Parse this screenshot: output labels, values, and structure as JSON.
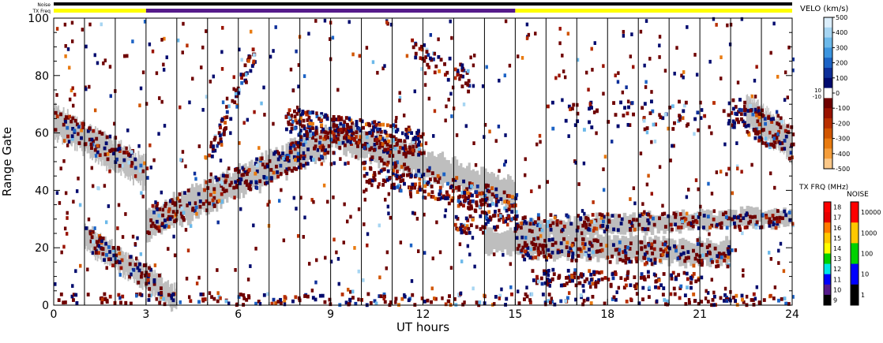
{
  "chart_data": {
    "type": "heatmap",
    "xlabel": "UT hours",
    "ylabel": "Range Gate",
    "xlim": [
      0,
      24
    ],
    "ylim": [
      0,
      100
    ],
    "x_ticks": [
      "0",
      "3",
      "6",
      "9",
      "12",
      "15",
      "18",
      "21",
      "24"
    ],
    "y_ticks": [
      "0",
      "20",
      "40",
      "60",
      "80",
      "100"
    ],
    "scan_boundaries_hours": [
      1.0,
      2.0,
      3.0,
      4.0,
      5.0,
      6.0,
      7.0,
      8.0,
      9.0,
      10.0,
      11.0,
      12.0,
      13.0,
      14.0,
      15.0,
      16.0,
      17.0,
      18.0,
      19.0,
      20.0,
      21.0,
      22.0,
      23.0
    ],
    "ground_scatter_color": "#bebebe",
    "top_strips": {
      "noise_label": "Noise",
      "txfreq_label": "TX Freq",
      "txfreq_segments": [
        {
          "start": 0,
          "end": 3,
          "color": "#ffff00"
        },
        {
          "start": 3,
          "end": 15,
          "color": "#551a8b"
        },
        {
          "start": 15,
          "end": 24,
          "color": "#ffff00"
        }
      ]
    },
    "ground_scatter_bands": [
      {
        "t0": 0.0,
        "t1": 3.0,
        "g0": 64,
        "g1": 46,
        "w": 5
      },
      {
        "t0": 3.0,
        "t1": 9.0,
        "g0": 28,
        "g1": 58,
        "w": 5
      },
      {
        "t0": 9.0,
        "t1": 15.0,
        "g0": 60,
        "g1": 38,
        "w": 5
      },
      {
        "t0": 15.0,
        "t1": 24.0,
        "g0": 26,
        "g1": 31,
        "w": 3
      },
      {
        "t0": 1.0,
        "t1": 4.0,
        "g0": 24,
        "g1": 2,
        "w": 4
      },
      {
        "t0": 14.0,
        "t1": 22.0,
        "g0": 22,
        "g1": 18,
        "w": 4
      },
      {
        "t0": 22.5,
        "t1": 24.0,
        "g0": 68,
        "g1": 56,
        "w": 5
      }
    ],
    "scatter_bands": [
      {
        "t0": 0.0,
        "t1": 3.0,
        "g0": 65,
        "g1": 47,
        "w": 4,
        "n": 90
      },
      {
        "t0": 3.0,
        "t1": 9.5,
        "g0": 29,
        "g1": 60,
        "w": 5,
        "n": 260
      },
      {
        "t0": 5.0,
        "t1": 6.5,
        "g0": 50,
        "g1": 88,
        "w": 4,
        "n": 70
      },
      {
        "t0": 7.5,
        "t1": 12.0,
        "g0": 64,
        "g1": 56,
        "w": 5,
        "n": 300
      },
      {
        "t0": 10.0,
        "t1": 15.0,
        "g0": 48,
        "g1": 34,
        "w": 5,
        "n": 260
      },
      {
        "t0": 13.0,
        "t1": 24.0,
        "g0": 28,
        "g1": 30,
        "w": 3,
        "n": 260
      },
      {
        "t0": 15.0,
        "t1": 22.0,
        "g0": 20,
        "g1": 17,
        "w": 4,
        "n": 220
      },
      {
        "t0": 0.0,
        "t1": 24.0,
        "g0": 2,
        "g1": 2,
        "w": 2,
        "n": 240
      },
      {
        "t0": 15.5,
        "t1": 21.0,
        "g0": 10,
        "g1": 8,
        "w": 3,
        "n": 140
      },
      {
        "t0": 22.0,
        "t1": 24.0,
        "g0": 68,
        "g1": 56,
        "w": 6,
        "n": 110
      },
      {
        "t0": 1.0,
        "t1": 3.5,
        "g0": 24,
        "g1": 6,
        "w": 4,
        "n": 80
      },
      {
        "t0": 16.0,
        "t1": 22.0,
        "g0": 66,
        "g1": 66,
        "w": 5,
        "n": 70
      },
      {
        "t0": 11.5,
        "t1": 13.5,
        "g0": 90,
        "g1": 78,
        "w": 4,
        "n": 50
      }
    ],
    "velocity_colorbar": {
      "title": "VELO (km/s)",
      "tick_labels": [
        "500",
        "400",
        "300",
        "200",
        "100",
        "0",
        "-100",
        "-200",
        "-300",
        "-400",
        "-500"
      ],
      "tick_values": [
        500,
        400,
        300,
        200,
        100,
        0,
        -100,
        -200,
        -300,
        -400,
        -500
      ],
      "near_zero_labels": [
        "10",
        "-10"
      ],
      "colors": [
        "#dbeefb",
        "#a6d5f2",
        "#6cb9ea",
        "#3c95df",
        "#1c63c5",
        "#0e2f99",
        "#000a6e",
        "#ffffff",
        "#6e0000",
        "#991200",
        "#b82f00",
        "#d15500",
        "#e87a10",
        "#f59e3c",
        "#fbc888"
      ]
    },
    "txfreq_colorbar": {
      "title": "TX FRQ (MHz)",
      "labels": [
        "18",
        "17",
        "16",
        "15",
        "14",
        "13",
        "12",
        "11",
        "10",
        "9"
      ],
      "colors": [
        "#ff0000",
        "#e60000",
        "#ff7a00",
        "#ffc800",
        "#ffff00",
        "#00d200",
        "#00e6e6",
        "#0000ff",
        "#551a8b",
        "#000000"
      ]
    },
    "noise_colorbar": {
      "title": "NOISE",
      "labels": [
        "10000",
        "1000",
        "100",
        "10",
        "1"
      ],
      "colors": [
        "#ff0000",
        "#ffc800",
        "#00d200",
        "#0000ff",
        "#000000"
      ]
    }
  }
}
